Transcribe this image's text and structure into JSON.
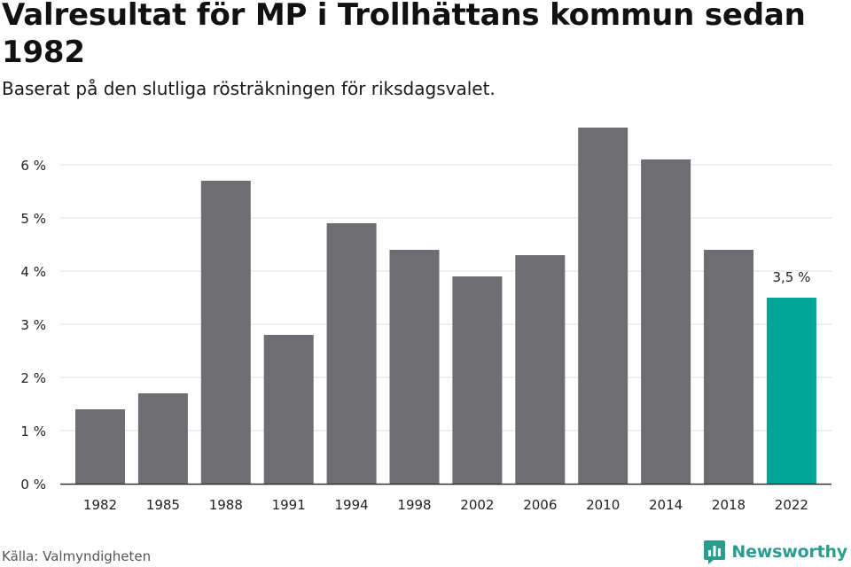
{
  "header": {
    "title": "Valresultat för MP i Trollhättans kommun sedan 1982",
    "subtitle": "Baserat på den slutliga rösträkningen för riksdagsvalet."
  },
  "footer": {
    "source": "Källa: Valmyndigheten",
    "brand": "Newsworthy",
    "brand_icon": "newsworthy-logo-icon"
  },
  "colors": {
    "bar": "#6e6d72",
    "highlight": "#00a597",
    "grid": "#dcdcdc",
    "axis": "#333333",
    "brand": "#2a9d8f"
  },
  "chart_data": {
    "type": "bar",
    "title": "Valresultat för MP i Trollhättans kommun sedan 1982",
    "subtitle": "Baserat på den slutliga rösträkningen för riksdagsvalet.",
    "xlabel": "",
    "ylabel": "",
    "categories": [
      "1982",
      "1985",
      "1988",
      "1991",
      "1994",
      "1998",
      "2002",
      "2006",
      "2010",
      "2014",
      "2018",
      "2022"
    ],
    "values": [
      1.4,
      1.7,
      5.7,
      2.8,
      4.9,
      4.4,
      3.9,
      4.3,
      6.7,
      6.1,
      4.4,
      3.5
    ],
    "ylim": [
      0,
      6.7
    ],
    "yticks": [
      0,
      1,
      2,
      3,
      4,
      5,
      6
    ],
    "ytick_labels": [
      "0 %",
      "1 %",
      "2 %",
      "3 %",
      "4 %",
      "5 %",
      "6 %"
    ],
    "highlight_index": 11,
    "annotations": [
      {
        "category": "2022",
        "text": "3,5 %"
      }
    ],
    "grid": true,
    "legend": "none"
  }
}
